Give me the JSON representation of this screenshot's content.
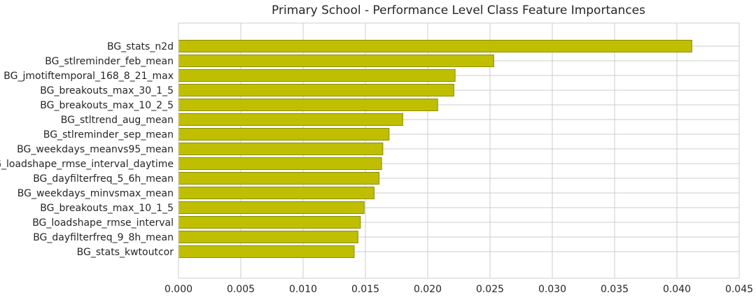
{
  "chart_data": {
    "type": "bar",
    "orientation": "horizontal",
    "title": "Primary School - Performance Level Class Feature Importances",
    "xlabel": "",
    "ylabel": "",
    "xlim": [
      0.0,
      0.045
    ],
    "x_ticks": [
      "0.000",
      "0.005",
      "0.010",
      "0.015",
      "0.020",
      "0.025",
      "0.030",
      "0.035",
      "0.040",
      "0.045"
    ],
    "grid": true,
    "bar_color": "#bfbf00",
    "bar_edge_color": "#8c8c00",
    "categories": [
      "BG_stats_n2d",
      "BG_stlreminder_feb_mean",
      "BG_jmotiftemporal_168_8_21_max",
      "BG_breakouts_max_30_1_5",
      "BG_breakouts_max_10_2_5",
      "BG_stltrend_aug_mean",
      "BG_stlreminder_sep_mean",
      "BG_weekdays_meanvs95_mean",
      "BG_loadshape_rmse_interval_daytime",
      "BG_dayfilterfreq_5_6h_mean",
      "BG_weekdays_minvsmax_mean",
      "BG_breakouts_max_10_1_5",
      "BG_loadshape_rmse_interval",
      "BG_dayfilterfreq_9_8h_mean",
      "BG_stats_kwtoutcor"
    ],
    "values": [
      0.0412,
      0.0253,
      0.0222,
      0.0221,
      0.0208,
      0.018,
      0.0169,
      0.0164,
      0.0163,
      0.0161,
      0.0157,
      0.0149,
      0.0146,
      0.0144,
      0.0141
    ]
  }
}
